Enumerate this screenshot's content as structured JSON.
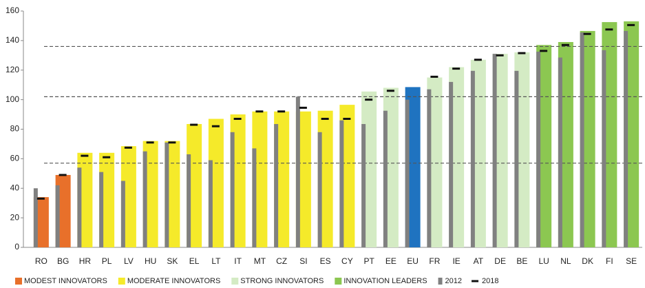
{
  "chart_data": {
    "type": "bar",
    "categories": [
      "RO",
      "BG",
      "HR",
      "PL",
      "LV",
      "HU",
      "SK",
      "EL",
      "LT",
      "IT",
      "MT",
      "CZ",
      "SI",
      "ES",
      "CY",
      "PT",
      "EE",
      "EU",
      "FR",
      "IE",
      "AT",
      "DE",
      "BE",
      "LU",
      "NL",
      "DK",
      "FI",
      "SE"
    ],
    "values": [
      34,
      49,
      64,
      64,
      68.5,
      72,
      72,
      83.5,
      87,
      90,
      92,
      92,
      92,
      92.5,
      96.5,
      105.5,
      108,
      108.5,
      115,
      122,
      127,
      131,
      132,
      137,
      139,
      146.5,
      152.5,
      153
    ],
    "colors": [
      "#e8702a",
      "#e8702a",
      "#f5ea2a",
      "#f5ea2a",
      "#f5ea2a",
      "#f5ea2a",
      "#f5ea2a",
      "#f5ea2a",
      "#f5ea2a",
      "#f5ea2a",
      "#f5ea2a",
      "#f5ea2a",
      "#f5ea2a",
      "#f5ea2a",
      "#f5ea2a",
      "#d4ebc4",
      "#d4ebc4",
      "#1f73c0",
      "#d4ebc4",
      "#d4ebc4",
      "#d4ebc4",
      "#d4ebc4",
      "#d4ebc4",
      "#8cc751",
      "#8cc751",
      "#8cc751",
      "#8cc751",
      "#8cc751"
    ],
    "legend": [
      {
        "name": "MODEST INNOVATORS",
        "color": "#e8702a"
      },
      {
        "name": "MODERATE INNOVATORS",
        "color": "#f5ea2a"
      },
      {
        "name": "STRONG INNOVATORS",
        "color": "#d4ebc4"
      },
      {
        "name": "INNOVATION LEADERS",
        "color": "#8cc751"
      }
    ],
    "series": [
      {
        "name": "2012",
        "color": "#808080",
        "values": [
          40,
          42,
          54,
          51,
          45,
          65,
          71,
          63,
          59,
          78,
          67,
          83.5,
          102,
          78,
          86,
          83.5,
          92.5,
          100,
          107,
          112,
          119.5,
          131,
          119.5,
          132.5,
          128.5,
          145.5,
          133.5,
          146.5
        ]
      },
      {
        "name": "2018",
        "color": "#111111",
        "values": [
          33,
          49,
          62,
          61,
          67.5,
          71,
          71,
          83,
          82,
          87,
          92,
          92,
          94.5,
          87,
          87,
          100,
          106,
          null,
          115.5,
          121,
          127,
          130,
          131.5,
          133,
          137,
          144.5,
          147.5,
          150.5
        ]
      }
    ],
    "reference_lines": [
      57,
      102,
      136
    ],
    "ylim": [
      0,
      160
    ],
    "yticks": [
      0,
      20,
      40,
      60,
      80,
      100,
      120,
      140,
      160
    ],
    "grid": false
  }
}
